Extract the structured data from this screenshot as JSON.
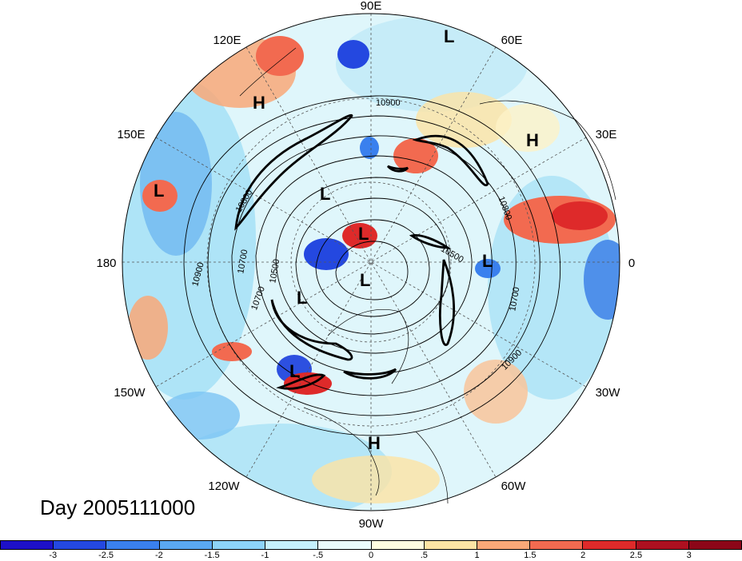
{
  "day_label": "Day 2005111000",
  "longitude_labels": [
    "90E",
    "60E",
    "30E",
    "0",
    "30W",
    "60W",
    "90W",
    "120W",
    "150W",
    "180",
    "150E",
    "120E"
  ],
  "contour_labels": [
    "10900",
    "10800",
    "10700",
    "10500",
    "10700",
    "10900",
    "10700",
    "10900",
    "10800",
    "10500"
  ],
  "centers": [
    "L",
    "H",
    "L",
    "H",
    "L",
    "L",
    "L",
    "L",
    "L",
    "L",
    "H",
    "L"
  ],
  "colorbar": {
    "tick_labels": [
      "-3",
      "-2.5",
      "-2",
      "-1.5",
      "-1",
      "-.5",
      "0",
      ".5",
      "1",
      "1.5",
      "2",
      "2.5",
      "3"
    ],
    "colors": [
      "#1d10c8",
      "#2448e0",
      "#3a80ee",
      "#5aa8f2",
      "#8dd3f8",
      "#c5f0fb",
      "#eafcfc",
      "#fffde0",
      "#fde4a4",
      "#f9a878",
      "#f26a50",
      "#de2a2a",
      "#ad1020",
      "#8c0618"
    ]
  }
}
